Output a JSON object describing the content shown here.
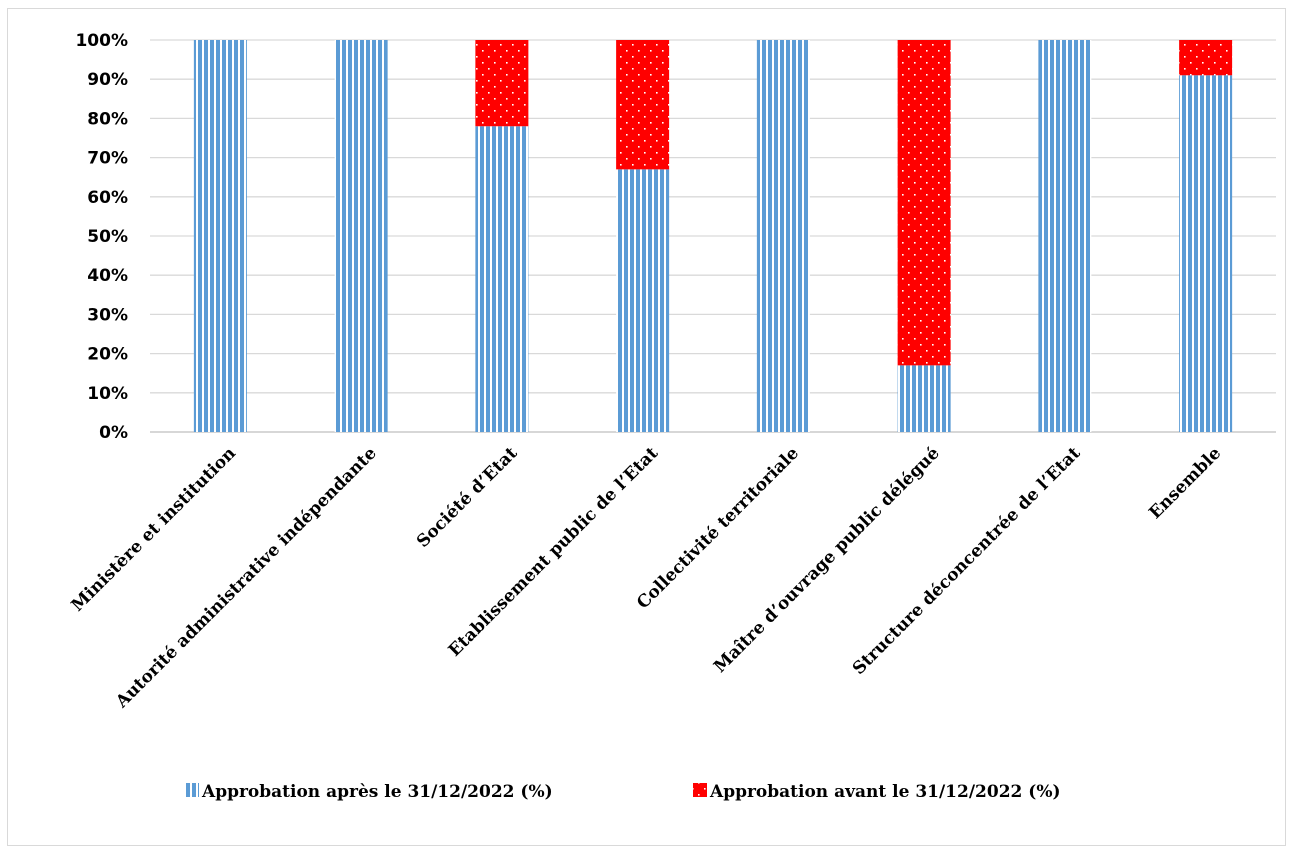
{
  "chart_data": {
    "type": "bar",
    "stacked": true,
    "percent_stacked": true,
    "categories": [
      "Ministère et institution",
      "Autorité administrative indépendante",
      "Société d’Etat",
      "Etablissement public de l’Etat",
      "Collectivité territoriale",
      "Maître d’ouvrage public délégué",
      "Structure déconcentrée de l’Etat",
      "Ensemble"
    ],
    "series": [
      {
        "name": "Approbation après le 31/12/2022 (%)",
        "values": [
          100,
          100,
          78,
          67,
          100,
          17,
          100,
          91
        ],
        "color": "#5b9bd5",
        "pattern": "vertical-stripes"
      },
      {
        "name": "Approbation avant le 31/12/2022 (%)",
        "values": [
          0,
          0,
          22,
          33,
          0,
          83,
          0,
          9
        ],
        "color": "#ff0000",
        "pattern": "dots"
      }
    ],
    "yticks": [
      "0%",
      "10%",
      "20%",
      "30%",
      "40%",
      "50%",
      "60%",
      "70%",
      "80%",
      "90%",
      "100%"
    ],
    "ylim": [
      0,
      100
    ],
    "grid": true,
    "legend_position": "bottom"
  }
}
